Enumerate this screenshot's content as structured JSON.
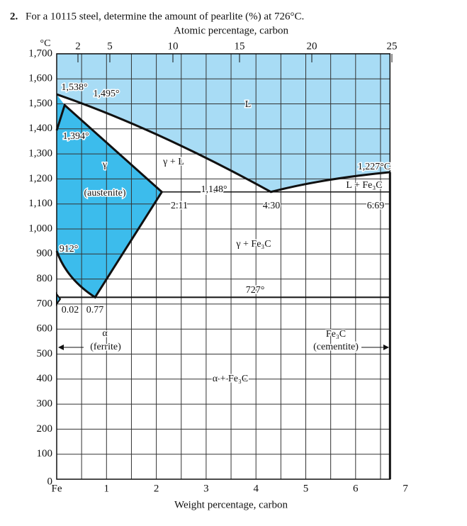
{
  "question": {
    "number": "2.",
    "text": "For a 10115 steel, determine the amount of pearlite (%) at 726°C."
  },
  "top_axis": {
    "title": "Atomic percentage, carbon",
    "ticks": [
      "2",
      "5",
      "10",
      "15",
      "20",
      "25"
    ]
  },
  "y_axis": {
    "unit": "°C",
    "ticks": [
      "1,700",
      "1,600",
      "1,500",
      "1,400",
      "1,300",
      "1,200",
      "1,100",
      "1,000",
      "900",
      "800",
      "700",
      "600",
      "500",
      "400",
      "300",
      "200",
      "100",
      "0"
    ]
  },
  "x_axis": {
    "title": "Weight percentage, carbon",
    "ticks": [
      "Fe",
      "1",
      "2",
      "3",
      "4",
      "5",
      "6",
      "7"
    ]
  },
  "labels": [
    "1,538°",
    "1,495°",
    "L",
    "1,394°",
    "γ + L",
    "γ",
    "(austenite)",
    "1,148°",
    "2.11",
    "4.30",
    "1,227°C",
    "L + Fe₃C",
    "6.69",
    "912°",
    "γ + Fe₃C",
    "727°",
    "0.02",
    "0.77",
    "α",
    "(ferrite)",
    "Fe₃C",
    "(cementite)",
    "α + Fe₃C"
  ]
}
